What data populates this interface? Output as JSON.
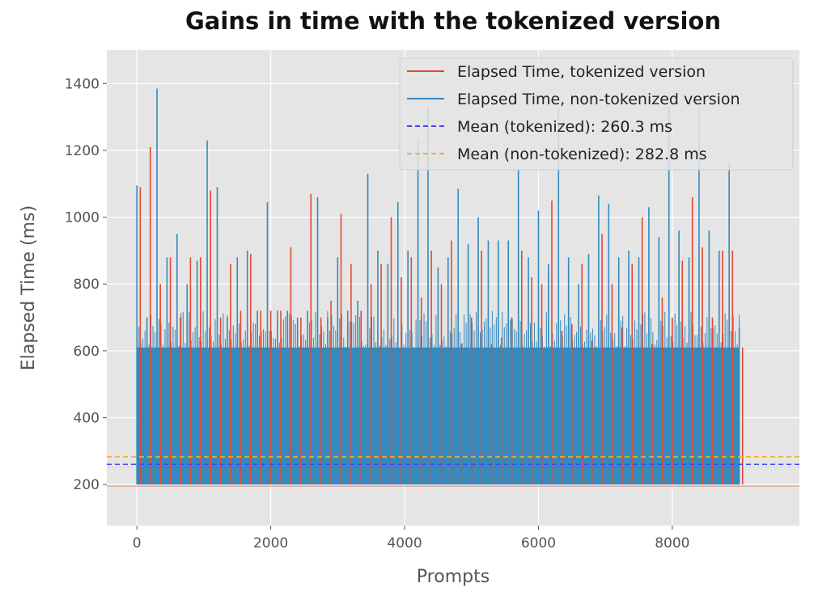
{
  "chart_data": {
    "type": "line",
    "title": "Gains in time with the tokenized version",
    "xlabel": "Prompts",
    "ylabel": "Elapsed Time (ms)",
    "xlim": [
      -450,
      9900
    ],
    "ylim": [
      77,
      1500
    ],
    "xticks": [
      0,
      2000,
      4000,
      6000,
      8000
    ],
    "yticks": [
      200,
      400,
      600,
      800,
      1000,
      1200,
      1400
    ],
    "grid": true,
    "legend_position": "top-right",
    "baseline_min": 200,
    "dense_band_upper": 610,
    "sample_step": 150,
    "series": [
      {
        "name": "Elapsed Time, tokenized version",
        "color": "#E24A33",
        "peak_values": [
          1090,
          1210,
          800,
          880,
          700,
          880,
          880,
          1080,
          700,
          860,
          720,
          890,
          720,
          720,
          720,
          910,
          700,
          1070,
          700,
          750,
          1010,
          860,
          720,
          800,
          860,
          1000,
          820,
          880,
          760,
          900,
          800,
          930,
          620,
          700,
          900,
          620,
          640,
          700,
          900,
          820,
          800,
          1050,
          660,
          680,
          860,
          630,
          950,
          800,
          670,
          860,
          1000,
          620,
          760,
          700,
          870,
          1060,
          910,
          700,
          900,
          900,
          610
        ]
      },
      {
        "name": "Elapsed Time, non-tokenized version",
        "color": "#348ABD",
        "peak_values": [
          1095,
          700,
          1385,
          880,
          950,
          800,
          870,
          1230,
          1090,
          700,
          880,
          900,
          720,
          1045,
          720,
          720,
          700,
          720,
          1060,
          700,
          880,
          720,
          750,
          1130,
          900,
          860,
          1045,
          900,
          1235,
          1330,
          850,
          880,
          1085,
          920,
          1000,
          930,
          930,
          930,
          1140,
          880,
          1020,
          860,
          1330,
          880,
          800,
          890,
          1065,
          1040,
          880,
          900,
          880,
          1030,
          940,
          1330,
          960,
          880,
          1330,
          960,
          900,
          1165,
          670
        ]
      }
    ],
    "mean_lines": [
      {
        "name": "Mean (tokenized): 260.3 ms",
        "value": 260.3,
        "color": "#4444ff"
      },
      {
        "name": "Mean (non-tokenized): 282.8 ms",
        "value": 282.8,
        "color": "#ffaa22"
      }
    ]
  }
}
